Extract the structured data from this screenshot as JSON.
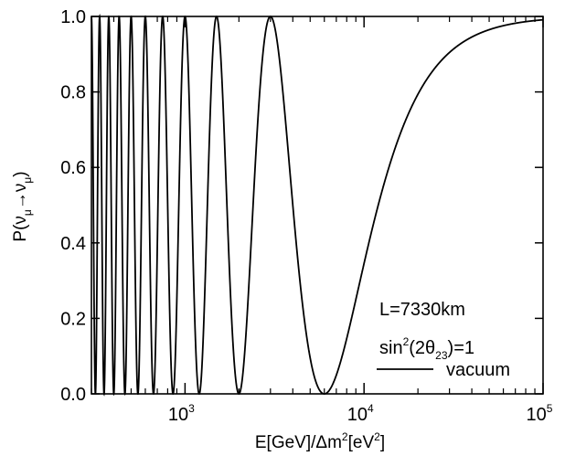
{
  "chart_data": {
    "type": "line",
    "xscale": "log",
    "xlim": [
      300,
      100000
    ],
    "ylim": [
      0,
      1.0
    ],
    "x_ticks": [
      {
        "value": 1000,
        "base": "10",
        "exp": "3"
      },
      {
        "value": 10000,
        "base": "10",
        "exp": "4"
      },
      {
        "value": 100000,
        "base": "10",
        "exp": "5"
      }
    ],
    "y_ticks": [
      {
        "value": 0.0,
        "label": "0.0"
      },
      {
        "value": 0.2,
        "label": "0.2"
      },
      {
        "value": 0.4,
        "label": "0.4"
      },
      {
        "value": 0.6,
        "label": "0.6"
      },
      {
        "value": 0.8,
        "label": "0.8"
      },
      {
        "value": 1.0,
        "label": "1.0"
      }
    ],
    "xlabel": {
      "pre": "E[GeV]/Δm",
      "sup1": "2",
      "mid": "[eV",
      "sup2": "2",
      "post": "]"
    },
    "ylabel": {
      "pre": "P(ν",
      "sub1": "μ",
      "arrow": "→ν",
      "sub2": "μ",
      "post": ")"
    },
    "annotations": {
      "baseline": "L=7330km",
      "mixing": {
        "pre": "sin",
        "sup": "2",
        "mid": "(2θ",
        "sub": "23",
        "post": ")=1"
      }
    },
    "series": [
      {
        "name": "vacuum",
        "color": "#000000",
        "model": "1 - sin^2(2θ23) sin^2(1.267 Δm^2 L / E)",
        "L_km": 7330,
        "sin2_2theta": 1
      }
    ]
  }
}
